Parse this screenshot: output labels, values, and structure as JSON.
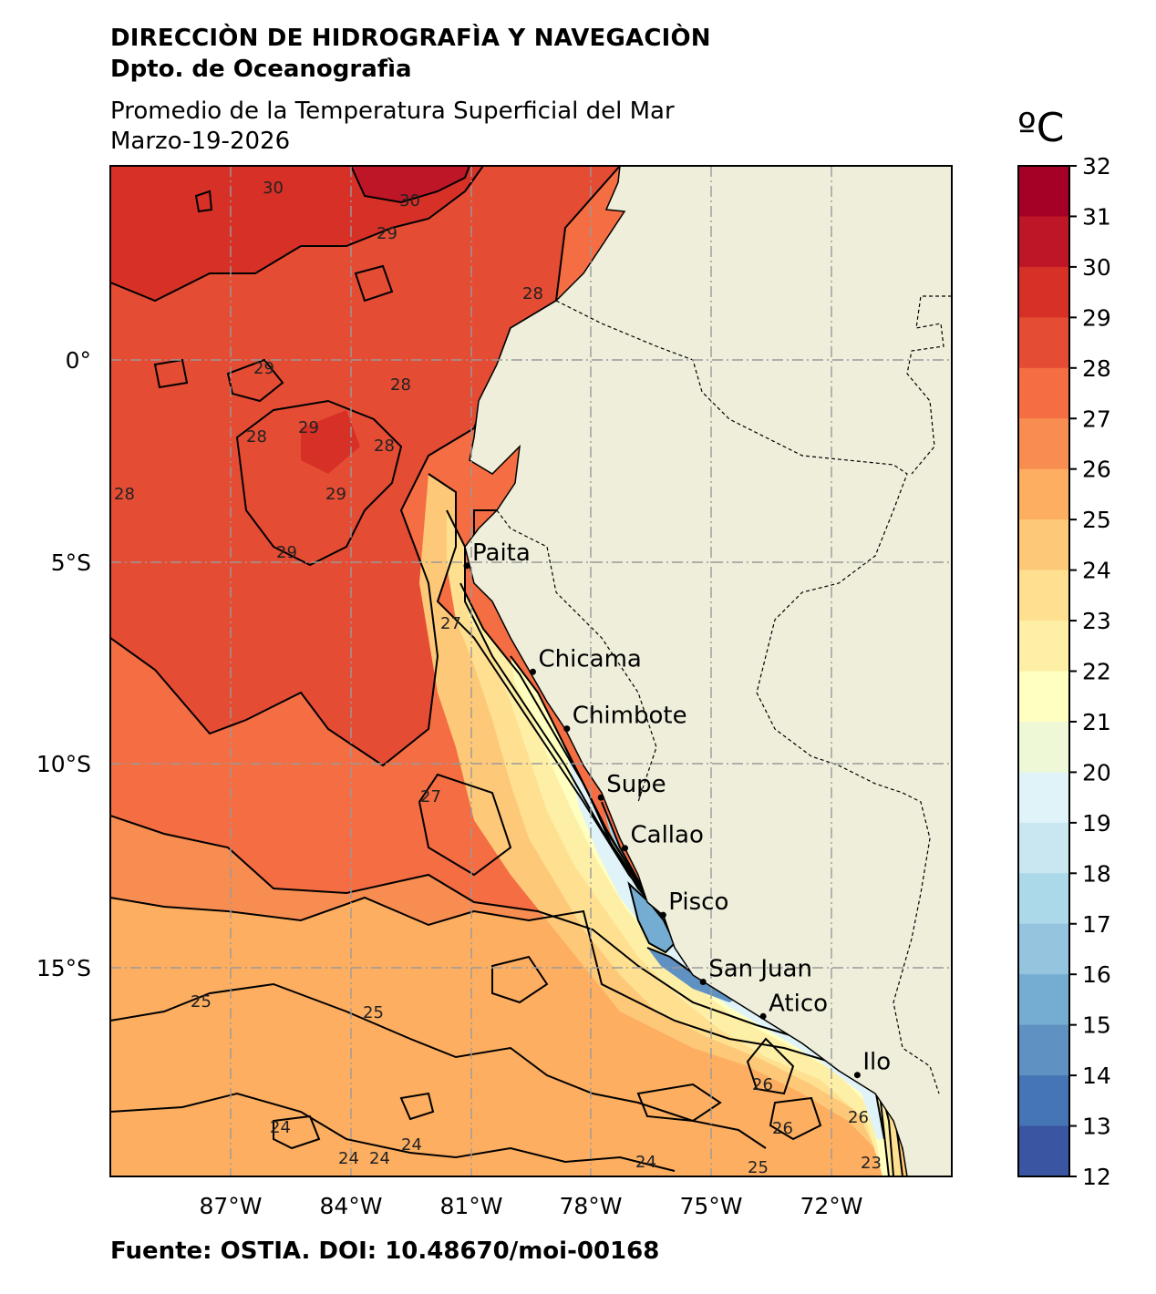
{
  "header": {
    "institution": "DIRECCIÒN DE HIDROGRAFÌA Y NAVEGACIÒN",
    "department": "Dpto. de Oceanografìa"
  },
  "title": {
    "line1": "Promedio de la Temperatura Superficial del Mar",
    "line2": "Marzo-19-2026"
  },
  "footer": "Fuente: OSTIA. DOI: 10.48670/moi-00168",
  "colorbar": {
    "unit": "ºC",
    "ticks": [
      "32",
      "31",
      "30",
      "29",
      "28",
      "27",
      "26",
      "25",
      "24",
      "23",
      "22",
      "21",
      "20",
      "19",
      "18",
      "17",
      "16",
      "15",
      "14",
      "13",
      "12"
    ],
    "colors": [
      "#a50026",
      "#be1627",
      "#d73027",
      "#e54c34",
      "#f46d43",
      "#f88d52",
      "#fdae61",
      "#fdc878",
      "#fee090",
      "#feefa6",
      "#ffffbf",
      "#eef8d6",
      "#e0f3f8",
      "#c8e7f0",
      "#abd9e9",
      "#94c4de",
      "#74add1",
      "#5f91c2",
      "#4575b4",
      "#3a55a1",
      "#313695"
    ]
  },
  "axes": {
    "lon_labels": [
      "87°W",
      "84°W",
      "81°W",
      "78°W",
      "75°W",
      "72°W"
    ],
    "lat_labels": [
      "0°",
      "5°S",
      "10°S",
      "15°S"
    ]
  },
  "cities": [
    {
      "name": "Paita",
      "lat": -5.08,
      "lon": -81.1
    },
    {
      "name": "Chicama",
      "lat": -7.7,
      "lon": -79.45
    },
    {
      "name": "Chimbote",
      "lat": -9.1,
      "lon": -78.6
    },
    {
      "name": "Supe",
      "lat": -10.8,
      "lon": -77.75
    },
    {
      "name": "Callao",
      "lat": -12.05,
      "lon": -77.15
    },
    {
      "name": "Pisco",
      "lat": -13.7,
      "lon": -76.2
    },
    {
      "name": "San Juan",
      "lat": -15.35,
      "lon": -75.2
    },
    {
      "name": "Atico",
      "lat": -16.2,
      "lon": -73.7
    },
    {
      "name": "Ilo",
      "lat": -17.65,
      "lon": -71.35
    }
  ],
  "contour_labels": [
    "30",
    "30",
    "29",
    "28",
    "28",
    "29",
    "29",
    "28",
    "28",
    "28",
    "29",
    "29",
    "27",
    "27",
    "25",
    "25",
    "24",
    "24",
    "24",
    "24",
    "24",
    "25",
    "26",
    "26",
    "26",
    "23"
  ],
  "colors": {
    "land": "#efeedb",
    "frame": "#000000",
    "grid": "#9a9a9a"
  }
}
